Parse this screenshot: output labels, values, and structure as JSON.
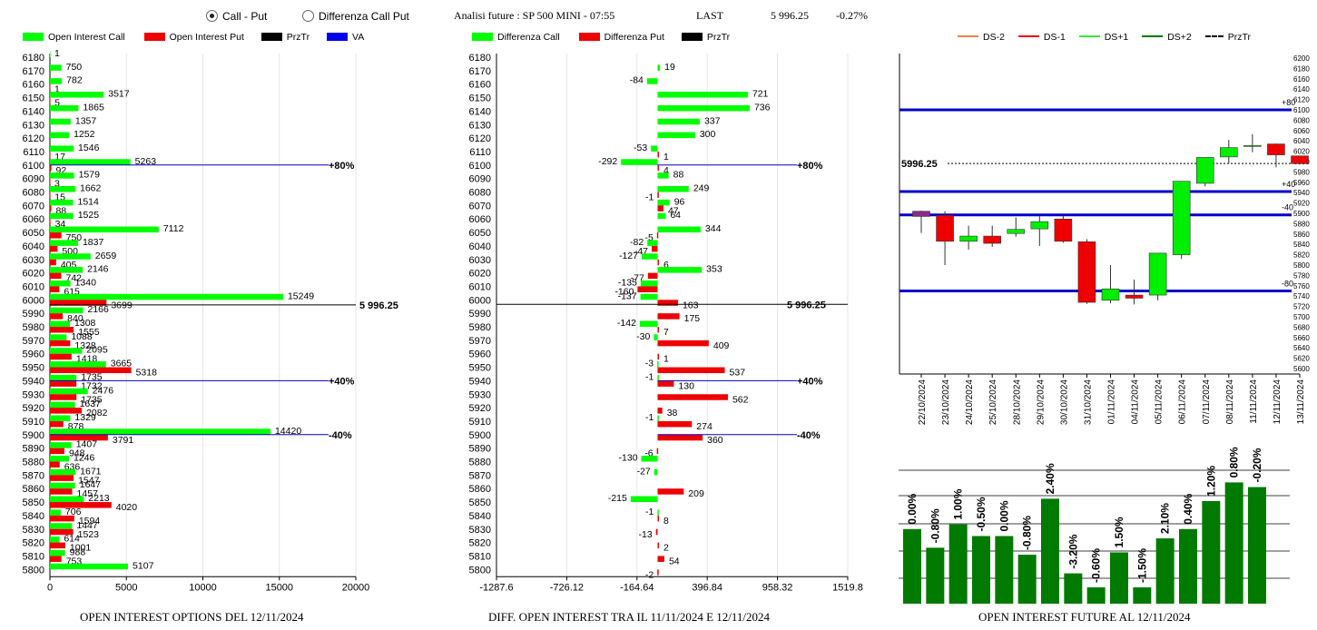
{
  "header": {
    "radio_call_put": "Call - Put",
    "radio_diff": "Differenza Call Put",
    "title": "Analisi future : SP 500 MINI - 07:55",
    "last_label": "LAST",
    "last_value": "5 996.25",
    "last_change": "-0.27%"
  },
  "colors": {
    "call": "#00ff00",
    "put": "#ee0000",
    "prztr": "#000000",
    "va": "#0000ee",
    "future_bar": "#007a00"
  },
  "left_chart": {
    "legend": {
      "call": "Open Interest Call",
      "put": "Open Interest Put",
      "prztr": "PrzTr",
      "va": "VA"
    },
    "caption": "OPEN INTEREST OPTIONS DEL 12/11/2024",
    "price_tag": "5 996.25",
    "lines": [
      {
        "label": "+80%",
        "strike": 6100
      },
      {
        "label": "+40%",
        "strike": 5940
      },
      {
        "label": "-40%",
        "strike": 5900
      }
    ]
  },
  "mid_chart": {
    "legend": {
      "call": "Differenza Call",
      "put": "Differenza Put",
      "prztr": "PrzTr"
    },
    "caption": "DIFF. OPEN INTEREST TRA IL 11/11/2024 E 12/11/2024",
    "price_tag": "5 996.25",
    "lines": [
      {
        "label": "+80%",
        "strike": 6100
      },
      {
        "label": "+40%",
        "strike": 5940
      },
      {
        "label": "-40%",
        "strike": 5900
      }
    ]
  },
  "right_chart": {
    "legend": {
      "ds_m2": "DS-2",
      "ds_m1": "DS-1",
      "ds_p1": "DS+1",
      "ds_p2": "DS+2",
      "prztr": "PrzTr"
    },
    "price_label": "5996.25",
    "line_labels": {
      "p80": "+80",
      "p40": "+40",
      "m40": "-40",
      "m80": "-80"
    },
    "caption": "OPEN INTEREST FUTURE AL 12/11/2024"
  },
  "chart_data": [
    {
      "type": "bar",
      "orientation": "horizontal",
      "categories": [
        6180,
        6170,
        6160,
        6150,
        6140,
        6130,
        6120,
        6110,
        6100,
        6090,
        6080,
        6070,
        6060,
        6050,
        6040,
        6030,
        6020,
        6010,
        6000,
        5990,
        5980,
        5970,
        5960,
        5950,
        5940,
        5930,
        5920,
        5910,
        5900,
        5890,
        5880,
        5870,
        5860,
        5850,
        5840,
        5830,
        5820,
        5810,
        5800
      ],
      "series": [
        {
          "name": "Open Interest Call",
          "values": [
            1,
            750,
            782,
            3517,
            1865,
            1357,
            1252,
            1546,
            5263,
            1579,
            1662,
            1514,
            1525,
            7112,
            1837,
            2659,
            2146,
            1340,
            15249,
            2166,
            1308,
            1088,
            2095,
            3665,
            1735,
            2476,
            1637,
            1329,
            14420,
            1407,
            1246,
            1671,
            1647,
            2213,
            706,
            1447,
            614,
            988,
            5107
          ]
        },
        {
          "name": "Open Interest Put",
          "values": [
            null,
            null,
            1,
            5,
            null,
            null,
            null,
            17,
            92,
            3,
            15,
            88,
            34,
            750,
            500,
            405,
            742,
            615,
            3699,
            840,
            1555,
            1328,
            1418,
            5318,
            1732,
            1735,
            2082,
            878,
            3791,
            948,
            636,
            1547,
            1457,
            4020,
            1594,
            1523,
            1001,
            753,
            null
          ]
        }
      ],
      "xticks": [
        0,
        5000,
        10000,
        15000,
        20000
      ],
      "xlim": [
        0,
        20000
      ],
      "prztr": 5996.25,
      "lines": [
        {
          "label": "+80%",
          "strike": 6100
        },
        {
          "label": "+40%",
          "strike": 5940
        },
        {
          "label": "-40%",
          "strike": 5900
        }
      ]
    },
    {
      "type": "bar",
      "orientation": "horizontal",
      "categories": [
        6180,
        6170,
        6160,
        6150,
        6140,
        6130,
        6120,
        6110,
        6100,
        6090,
        6080,
        6070,
        6060,
        6050,
        6040,
        6030,
        6020,
        6010,
        6000,
        5990,
        5980,
        5970,
        5960,
        5950,
        5940,
        5930,
        5920,
        5910,
        5900,
        5890,
        5880,
        5870,
        5860,
        5850,
        5840,
        5830,
        5820,
        5810,
        5800
      ],
      "series": [
        {
          "name": "Differenza Call",
          "values": [
            null,
            19,
            -84,
            721,
            736,
            337,
            300,
            -53,
            -292,
            88,
            249,
            96,
            64,
            344,
            -82,
            -127,
            353,
            -135,
            -137,
            null,
            -142,
            -30,
            null,
            -3,
            -1,
            null,
            null,
            -1,
            null,
            null,
            -130,
            -27,
            null,
            -215,
            -1,
            null,
            null,
            null,
            null
          ]
        },
        {
          "name": "Differenza Put",
          "values": [
            null,
            null,
            null,
            null,
            null,
            null,
            null,
            1,
            4,
            null,
            -1,
            47,
            null,
            -5,
            -47,
            6,
            -77,
            -160,
            163,
            175,
            7,
            409,
            1,
            537,
            130,
            562,
            38,
            274,
            360,
            -6,
            null,
            null,
            209,
            null,
            8,
            -13,
            2,
            54,
            -2
          ]
        }
      ],
      "xticks": [
        -1287.6,
        -726.12,
        -164.64,
        396.84,
        958.32,
        1519.8
      ],
      "xlim": [
        -1287.6,
        1519.8
      ],
      "prztr": 5996.25,
      "lines": [
        {
          "label": "+80%",
          "strike": 6100
        },
        {
          "label": "+40%",
          "strike": 5940
        },
        {
          "label": "-40%",
          "strike": 5900
        }
      ]
    },
    {
      "type": "candlestick",
      "categories": [
        "22/10/2024",
        "23/10/2024",
        "24/10/2024",
        "25/10/2024",
        "28/10/2024",
        "29/10/2024",
        "30/10/2024",
        "31/10/2024",
        "01/11/2024",
        "04/11/2024",
        "05/11/2024",
        "06/11/2024",
        "07/11/2024",
        "08/11/2024",
        "11/11/2024",
        "12/11/2024",
        "13/11/2024"
      ],
      "ohlc": [
        {
          "o": 5894,
          "h": 5905,
          "l": 5862,
          "c": 5904
        },
        {
          "o": 5896,
          "h": 5904,
          "l": 5800,
          "c": 5846
        },
        {
          "o": 5846,
          "h": 5876,
          "l": 5830,
          "c": 5856
        },
        {
          "o": 5856,
          "h": 5876,
          "l": 5835,
          "c": 5842
        },
        {
          "o": 5861,
          "h": 5892,
          "l": 5855,
          "c": 5869
        },
        {
          "o": 5870,
          "h": 5895,
          "l": 5837,
          "c": 5884
        },
        {
          "o": 5889,
          "h": 5896,
          "l": 5843,
          "c": 5846
        },
        {
          "o": 5845,
          "h": 5850,
          "l": 5725,
          "c": 5728
        },
        {
          "o": 5732,
          "h": 5800,
          "l": 5726,
          "c": 5754
        },
        {
          "o": 5742,
          "h": 5772,
          "l": 5724,
          "c": 5736
        },
        {
          "o": 5742,
          "h": 5822,
          "l": 5732,
          "c": 5823
        },
        {
          "o": 5820,
          "h": 5962,
          "l": 5812,
          "c": 5962
        },
        {
          "o": 5958,
          "h": 6008,
          "l": 5952,
          "c": 6008
        },
        {
          "o": 6009,
          "h": 6042,
          "l": 5996,
          "c": 6027
        },
        {
          "o": 6031,
          "h": 6053,
          "l": 6018,
          "c": 6031
        },
        {
          "o": 6034,
          "h": 6035,
          "l": 5989,
          "c": 6013
        },
        {
          "o": 6011,
          "h": 6011,
          "l": 5996,
          "c": 5996
        }
      ],
      "yticks": [
        5600,
        5620,
        5640,
        5660,
        5680,
        5700,
        5720,
        5740,
        5760,
        5780,
        5800,
        5820,
        5840,
        5860,
        5880,
        5900,
        5920,
        5940,
        5960,
        5980,
        6000,
        6020,
        6040,
        6060,
        6080,
        6100,
        6120,
        6140,
        6160,
        6180,
        6200
      ],
      "ylim": [
        5600,
        6200
      ],
      "hlines": [
        {
          "label": "+80",
          "value": 6100
        },
        {
          "label": "+40",
          "value": 5942
        },
        {
          "label": "-40",
          "value": 5897
        },
        {
          "label": "-80",
          "value": 5750
        }
      ],
      "prztr": 5996.25
    },
    {
      "type": "bar",
      "categories": [
        "22/10/2024",
        "23/10/2024",
        "24/10/2024",
        "25/10/2024",
        "28/10/2024",
        "29/10/2024",
        "30/10/2024",
        "31/10/2024",
        "01/11/2024",
        "04/11/2024",
        "05/11/2024",
        "06/11/2024",
        "07/11/2024",
        "08/11/2024",
        "11/11/2024",
        "12/11/2024",
        "13/11/2024"
      ],
      "series": [
        {
          "name": "Open Interest Future",
          "values": [
            100.0,
            99.2,
            100.2,
            99.7,
            99.7,
            98.9,
            101.3,
            98.1,
            97.5,
            99.0,
            97.5,
            99.6,
            100.0,
            101.2,
            102.0,
            101.8,
            null
          ]
        }
      ],
      "labels": [
        "0.00%",
        "-0.80%",
        "1.00%",
        "-0.50%",
        "0.00%",
        "-0.80%",
        "2.40%",
        "-3.20%",
        "-0.60%",
        "1.50%",
        "-1.50%",
        "2.10%",
        "0.40%",
        "1.20%",
        "0.80%",
        "-0.20%"
      ],
      "ylim": [
        96.8,
        102.6
      ]
    }
  ]
}
